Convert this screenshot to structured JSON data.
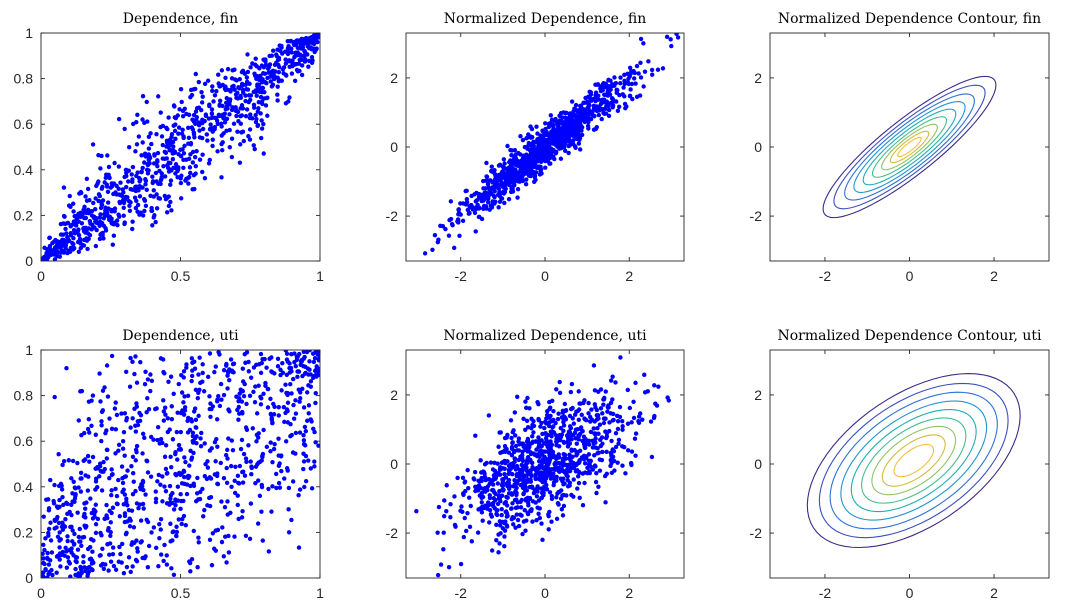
{
  "figure": {
    "background": "#ffffff",
    "marker_color": "#0000ff"
  },
  "chart_data": [
    {
      "type": "scatter",
      "title": "Dependence, fin",
      "xlim": [
        0,
        1
      ],
      "ylim": [
        0,
        1
      ],
      "xticks": [
        0,
        0.5,
        1
      ],
      "xticklabels": [
        "0",
        "0.5",
        "1"
      ],
      "yticks": [
        0,
        0.2,
        0.4,
        0.6,
        0.8,
        1
      ],
      "yticklabels": [
        "0",
        "0.2",
        "0.4",
        "0.6",
        "0.8",
        "1"
      ],
      "distribution": {
        "kind": "copula_uniform",
        "n": 1000,
        "rho": 0.95,
        "seed": 11
      },
      "grid": false
    },
    {
      "type": "scatter",
      "title": "Normalized Dependence, fin",
      "xlim": [
        -3.3,
        3.3
      ],
      "ylim": [
        -3.3,
        3.3
      ],
      "xticks": [
        -2,
        0,
        2
      ],
      "xticklabels": [
        "-2",
        "0",
        "2"
      ],
      "yticks": [
        -2,
        0,
        2
      ],
      "yticklabels": [
        "-2",
        "0",
        "2"
      ],
      "distribution": {
        "kind": "gaussian",
        "n": 1000,
        "rho": 0.95,
        "seed": 11
      },
      "grid": false
    },
    {
      "type": "contour",
      "title": "Normalized Dependence Contour, fin",
      "xlim": [
        -3.3,
        3.3
      ],
      "ylim": [
        -3.3,
        3.3
      ],
      "xticks": [
        -2,
        0,
        2
      ],
      "xticklabels": [
        "-2",
        "0",
        "2"
      ],
      "yticks": [
        -2,
        0,
        2
      ],
      "yticklabels": [
        "-2",
        "0",
        "2"
      ],
      "contour": {
        "center": [
          0,
          0
        ],
        "angle_deg": 45,
        "major_axis": [
          2.8,
          2.45,
          2.1,
          1.8,
          1.5,
          1.2,
          0.9,
          0.62,
          0.38
        ],
        "minor_axis": [
          0.72,
          0.63,
          0.55,
          0.47,
          0.39,
          0.31,
          0.24,
          0.17,
          0.1
        ],
        "colors": [
          "#3e2a8a",
          "#3b4fbf",
          "#2e72d6",
          "#2295d2",
          "#1eaeb4",
          "#47bd8e",
          "#8fc466",
          "#d0bb3f",
          "#f1c23a"
        ]
      },
      "grid": false
    },
    {
      "type": "scatter",
      "title": "Dependence, uti",
      "xlim": [
        0,
        1
      ],
      "ylim": [
        0,
        1
      ],
      "xticks": [
        0,
        0.5,
        1
      ],
      "xticklabels": [
        "0",
        "0.5",
        "1"
      ],
      "yticks": [
        0,
        0.2,
        0.4,
        0.6,
        0.8,
        1
      ],
      "yticklabels": [
        "0",
        "0.2",
        "0.4",
        "0.6",
        "0.8",
        "1"
      ],
      "distribution": {
        "kind": "copula_uniform",
        "n": 1000,
        "rho": 0.6,
        "seed": 29
      },
      "grid": false
    },
    {
      "type": "scatter",
      "title": "Normalized Dependence, uti",
      "xlim": [
        -3.3,
        3.3
      ],
      "ylim": [
        -3.3,
        3.3
      ],
      "xticks": [
        -2,
        0,
        2
      ],
      "xticklabels": [
        "-2",
        "0",
        "2"
      ],
      "yticks": [
        -2,
        0,
        2
      ],
      "yticklabels": [
        "-2",
        "0",
        "2"
      ],
      "distribution": {
        "kind": "gaussian",
        "n": 1000,
        "rho": 0.6,
        "seed": 29
      },
      "grid": false
    },
    {
      "type": "contour",
      "title": "Normalized Dependence Contour, uti",
      "xlim": [
        -3.3,
        3.3
      ],
      "ylim": [
        -3.3,
        3.3
      ],
      "xticks": [
        -2,
        0,
        2
      ],
      "xticklabels": [
        "-2",
        "0",
        "2"
      ],
      "yticks": [
        -2,
        0,
        2
      ],
      "yticklabels": [
        "-2",
        "0",
        "2"
      ],
      "contour": {
        "center": [
          0.1,
          0.1
        ],
        "angle_deg": 45,
        "major_axis": [
          3.1,
          2.75,
          2.45,
          2.15,
          1.85,
          1.55,
          1.25,
          0.95,
          0.6
        ],
        "minor_axis": [
          1.75,
          1.55,
          1.35,
          1.15,
          0.97,
          0.8,
          0.63,
          0.45,
          0.28
        ],
        "colors": [
          "#3e2a8a",
          "#3b4fbf",
          "#2e72d6",
          "#2295d2",
          "#1eaeb4",
          "#47bd8e",
          "#8fc466",
          "#d0bb3f",
          "#f1c23a"
        ]
      },
      "grid": false
    }
  ]
}
